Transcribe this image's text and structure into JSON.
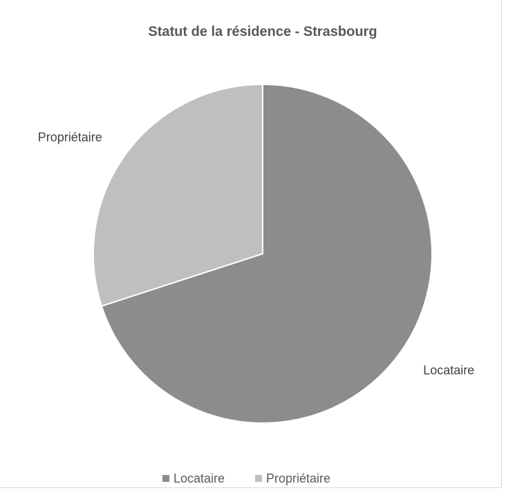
{
  "chart_data": {
    "type": "pie",
    "title": "Statut de la résidence - Strasbourg",
    "categories": [
      "Locataire",
      "Propriétaire"
    ],
    "values": [
      70,
      30
    ],
    "colors": [
      "#8c8c8c",
      "#bfbfbf"
    ],
    "start_angle_deg": 0,
    "direction": "clockwise",
    "data_labels": "category-outside",
    "legend": {
      "position": "bottom",
      "entries": [
        "Locataire",
        "Propriétaire"
      ]
    }
  }
}
